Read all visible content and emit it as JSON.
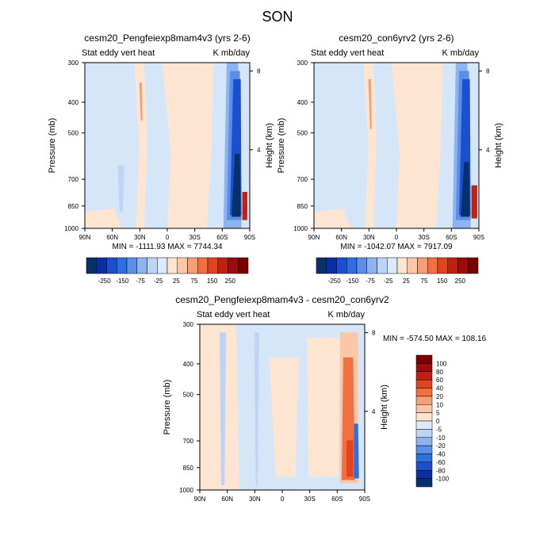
{
  "figure": {
    "season": "SON",
    "colors": {
      "field_positive": "#fde5d2",
      "field_negative": "#d5e6f8",
      "axis": "#000000",
      "background": "#ffffff"
    }
  },
  "chart_data": [
    {
      "type": "heatmap",
      "title": "cesm20_Pengfeiexp8mam4v3 (yrs 2-6)",
      "subtitle_left": "Stat eddy vert heat",
      "subtitle_right": "K mb/day",
      "ylabel": "Pressure (mb)",
      "ylabel_right": "Height (km)",
      "x_ticks": [
        "90N",
        "60N",
        "30N",
        "0",
        "30S",
        "60S",
        "90S"
      ],
      "y_ticks": [
        "300",
        "400",
        "500",
        "700",
        "850",
        "1000"
      ],
      "y_ticks_right": [
        "8",
        "4"
      ],
      "ylim": [
        1000,
        300
      ],
      "y_scale": "log",
      "stats": "MIN = -1111.93   MAX = 7744.34",
      "colorbar_levels": [
        "-250",
        "-150",
        "-75",
        "-25",
        "25",
        "75",
        "150",
        "250"
      ],
      "colorbar_colors": [
        "#08306b",
        "#0a2fa0",
        "#1a4fd0",
        "#2e6fe0",
        "#5a8fe8",
        "#8db4f0",
        "#bdd4f5",
        "#dde9fa",
        "#fde5d2",
        "#fbc7a6",
        "#f89e74",
        "#f2703f",
        "#e04520",
        "#c02010",
        "#9b0d0d",
        "#7a0000"
      ],
      "colorbar_orientation": "horizontal"
    },
    {
      "type": "heatmap",
      "title": "cesm20_con6yrv2 (yrs 2-6)",
      "subtitle_left": "Stat eddy vert heat",
      "subtitle_right": "K mb/day",
      "ylabel": "Pressure (mb)",
      "ylabel_right": "Height (km)",
      "x_ticks": [
        "90N",
        "60N",
        "30N",
        "0",
        "30S",
        "60S",
        "90S"
      ],
      "y_ticks": [
        "300",
        "400",
        "500",
        "700",
        "850",
        "1000"
      ],
      "y_ticks_right": [
        "8",
        "4"
      ],
      "ylim": [
        1000,
        300
      ],
      "y_scale": "log",
      "stats": "MIN = -1042.07   MAX = 7917.09",
      "colorbar_levels": [
        "-250",
        "-150",
        "-75",
        "-25",
        "25",
        "75",
        "150",
        "250"
      ],
      "colorbar_colors": [
        "#08306b",
        "#0a2fa0",
        "#1a4fd0",
        "#2e6fe0",
        "#5a8fe8",
        "#8db4f0",
        "#bdd4f5",
        "#dde9fa",
        "#fde5d2",
        "#fbc7a6",
        "#f89e74",
        "#f2703f",
        "#e04520",
        "#c02010",
        "#9b0d0d",
        "#7a0000"
      ],
      "colorbar_orientation": "horizontal"
    },
    {
      "type": "heatmap",
      "title": "cesm20_Pengfeiexp8mam4v3 - cesm20_con6yrv2",
      "subtitle_left": "Stat eddy vert heat",
      "subtitle_right": "K mb/day",
      "ylabel": "Pressure (mb)",
      "ylabel_right": "Height (km)",
      "x_ticks": [
        "90N",
        "60N",
        "30N",
        "0",
        "30S",
        "60S",
        "90S"
      ],
      "y_ticks": [
        "300",
        "400",
        "500",
        "700",
        "850",
        "1000"
      ],
      "y_ticks_right": [
        "8",
        "4"
      ],
      "ylim": [
        1000,
        300
      ],
      "y_scale": "log",
      "stats": "MIN = -574.50   MAX = 108.16",
      "colorbar_levels": [
        "100",
        "80",
        "60",
        "40",
        "20",
        "10",
        "5",
        "0",
        "-5",
        "-10",
        "-20",
        "-40",
        "-60",
        "-80",
        "-100"
      ],
      "colorbar_colors": [
        "#7a0000",
        "#9b0d0d",
        "#c02010",
        "#e04520",
        "#f2703f",
        "#f89e74",
        "#fbc7a6",
        "#fde5d2",
        "#dde9fa",
        "#bdd4f5",
        "#8db4f0",
        "#5a8fe8",
        "#2e6fe0",
        "#1a4fd0",
        "#0a2fa0",
        "#08306b"
      ],
      "colorbar_orientation": "vertical"
    }
  ]
}
